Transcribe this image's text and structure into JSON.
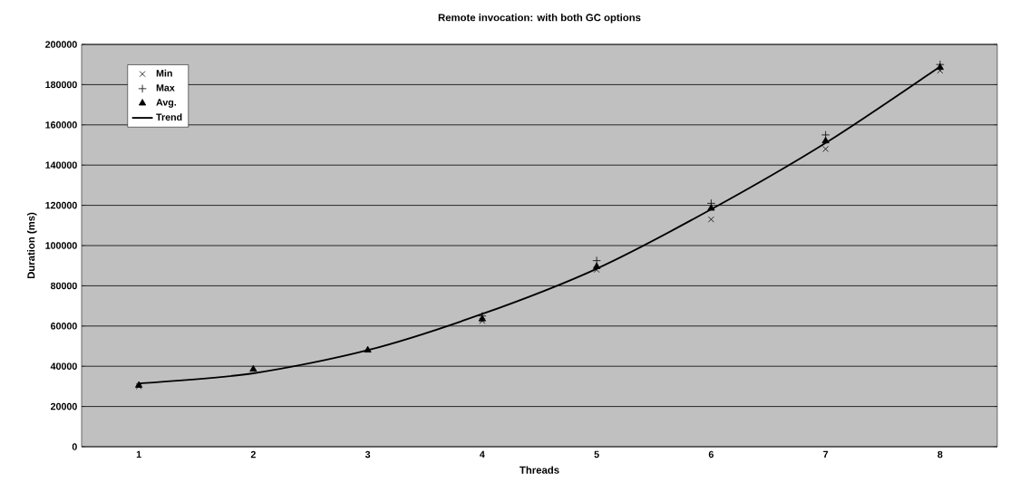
{
  "chart_data": {
    "type": "scatter",
    "title": "Remote invocation: with both GC options",
    "xlabel": "Threads",
    "ylabel": "Duration (ms)",
    "categories": [
      "1",
      "2",
      "3",
      "4",
      "5",
      "6",
      "7",
      "8"
    ],
    "series": [
      {
        "name": "Min",
        "color": "#000000",
        "marker": "x",
        "values": [
          30000,
          null,
          null,
          62500,
          88000,
          113000,
          148000,
          187000
        ]
      },
      {
        "name": "Max",
        "color": "#000000",
        "marker": "cross",
        "values": [
          null,
          null,
          null,
          65000,
          92500,
          121000,
          155000,
          190000
        ]
      },
      {
        "name": "Avg.",
        "color": "#000000",
        "marker": "triangle",
        "values": [
          30500,
          38500,
          48000,
          63500,
          89500,
          118500,
          152000,
          188500
        ]
      },
      {
        "name": "Trend",
        "color": "#000000",
        "type": "line",
        "marker": "none",
        "line_style": "solid",
        "values": [
          31500,
          36500,
          48000,
          66000,
          88500,
          118000,
          151000,
          189000
        ]
      }
    ],
    "ylim": [
      0,
      200000
    ],
    "yticks": [
      0,
      20000,
      40000,
      60000,
      80000,
      100000,
      120000,
      140000,
      160000,
      180000,
      200000
    ],
    "grid": "y",
    "legend": "top left"
  }
}
